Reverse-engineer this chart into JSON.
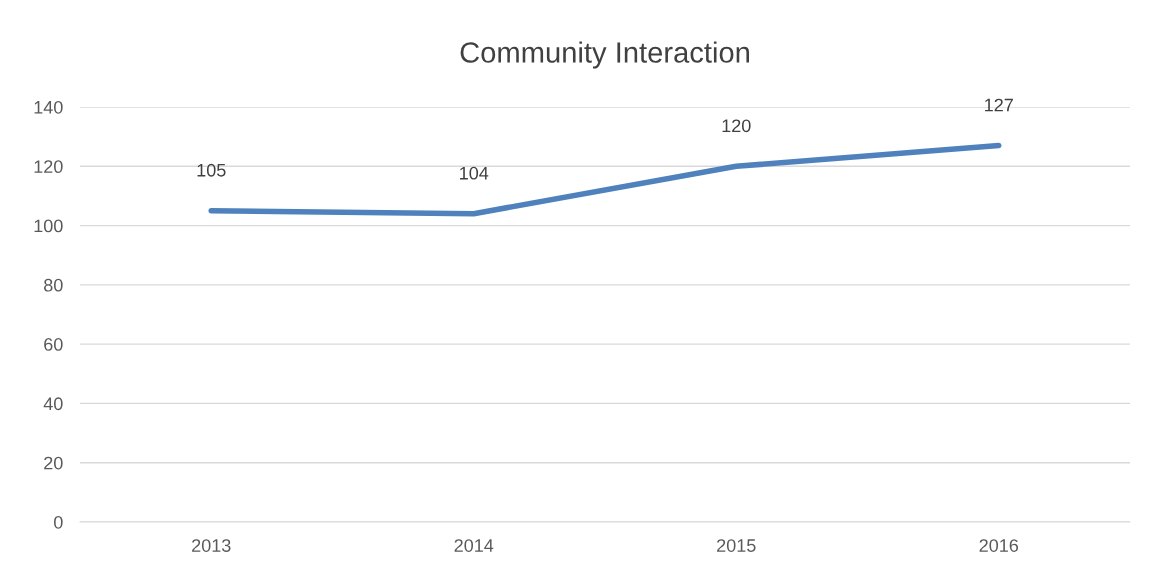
{
  "chart_data": {
    "type": "line",
    "title": "Community Interaction",
    "categories": [
      "2013",
      "2014",
      "2015",
      "2016"
    ],
    "series": [
      {
        "color": "#4f81bd",
        "values": [
          105,
          104,
          120,
          127
        ]
      }
    ],
    "ylim": [
      0,
      140
    ],
    "yticks": [
      0,
      20,
      40,
      60,
      80,
      100,
      120,
      140
    ],
    "grid": "y",
    "data_labels": true,
    "marker": "none",
    "line_style": "solid"
  }
}
